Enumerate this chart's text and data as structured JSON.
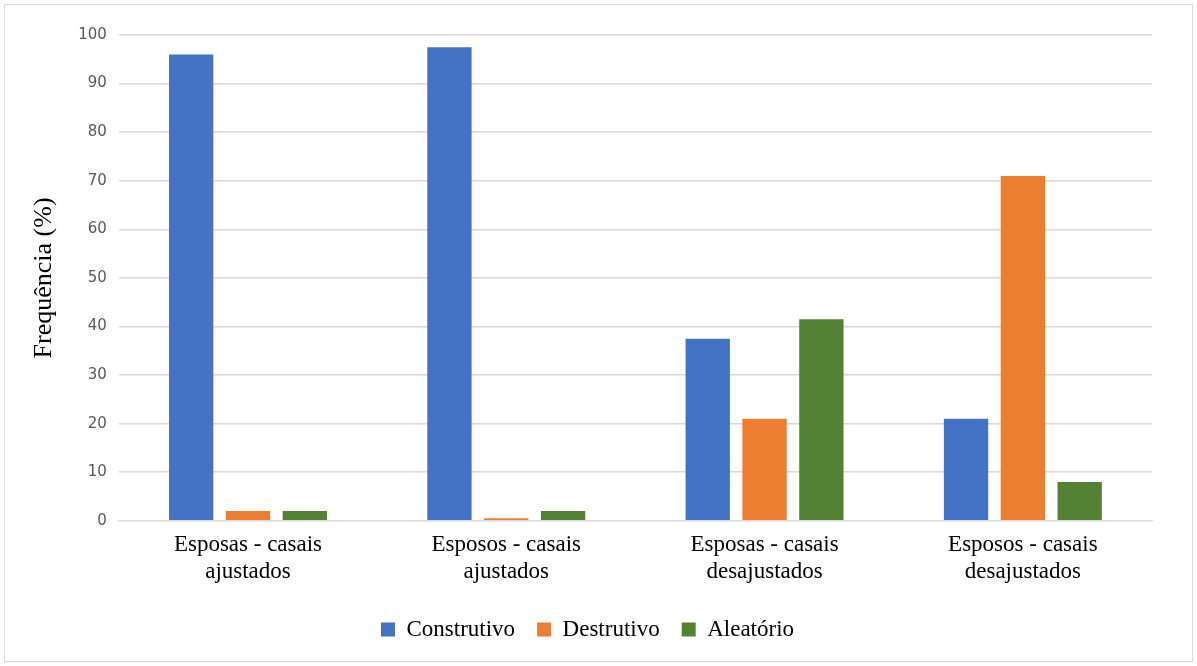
{
  "chart_data": {
    "type": "bar",
    "ylabel": "Frequência (%)",
    "categories": [
      "Esposas - casais ajustados",
      "Esposos - casais ajustados",
      "Esposas - casais desajustados",
      "Esposos - casais desajustados"
    ],
    "series": [
      {
        "name": "Construtivo",
        "color": "#4472c4",
        "values": [
          96,
          97.5,
          37.5,
          21
        ]
      },
      {
        "name": "Destrutivo",
        "color": "#ed7d31",
        "values": [
          2,
          0.5,
          21,
          71
        ]
      },
      {
        "name": "Aleatório",
        "color": "#548235",
        "values": [
          2,
          2,
          41.5,
          8
        ]
      }
    ],
    "ylim": [
      0,
      100
    ],
    "yticks": [
      0,
      10,
      20,
      30,
      40,
      50,
      60,
      70,
      80,
      90,
      100
    ],
    "grid": "y",
    "legend": "bottom"
  }
}
